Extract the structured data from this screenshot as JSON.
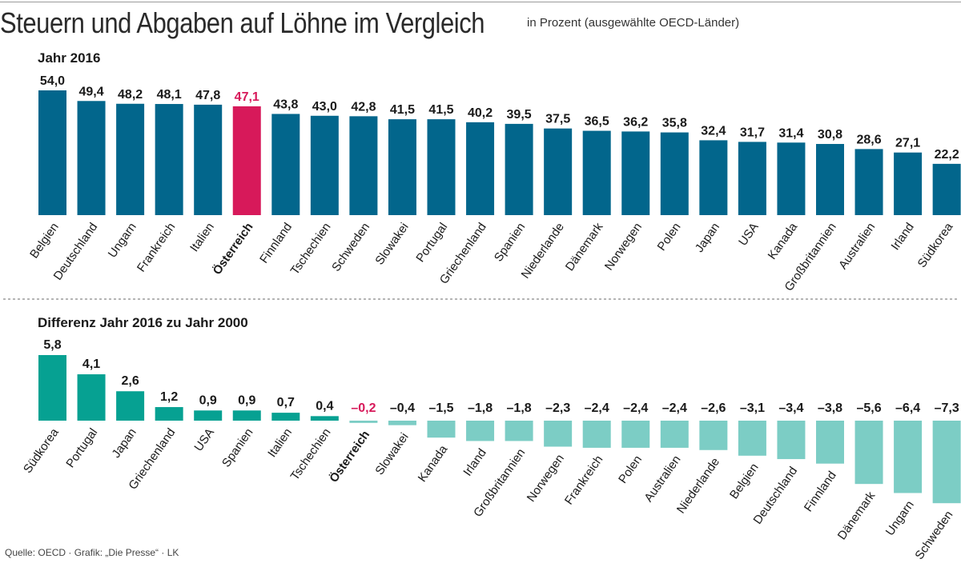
{
  "header": {
    "title": "Steuern und Abgaben auf Löhne im Vergleich",
    "subtitle": "in Prozent (ausgewählte OECD-Länder)"
  },
  "colors": {
    "panel1_bar": "#02668c",
    "panel2_bar_pos": "#06a192",
    "panel2_bar_neg": "#7ccdc5",
    "highlight": "#d7195a"
  },
  "chart_data": [
    {
      "type": "bar",
      "title": "Jahr 2016",
      "highlight": "Österreich",
      "categories": [
        "Belgien",
        "Deutschland",
        "Ungarn",
        "Frankreich",
        "Italien",
        "Österreich",
        "Finnland",
        "Tschechien",
        "Schweden",
        "Slowakei",
        "Portugal",
        "Griechenland",
        "Spanien",
        "Niederlande",
        "Dänemark",
        "Norwegen",
        "Polen",
        "Japan",
        "USA",
        "Kanada",
        "Großbritannien",
        "Australien",
        "Irland",
        "Südkorea"
      ],
      "values": [
        54.0,
        49.4,
        48.2,
        48.1,
        47.8,
        47.1,
        43.8,
        43.0,
        42.8,
        41.5,
        41.5,
        40.2,
        39.5,
        37.5,
        36.5,
        36.2,
        35.8,
        32.4,
        31.7,
        31.4,
        30.8,
        28.6,
        27.1,
        22.2
      ],
      "labels": [
        "54,0",
        "49,4",
        "48,2",
        "48,1",
        "47,8",
        "47,1",
        "43,8",
        "43,0",
        "42,8",
        "41,5",
        "41,5",
        "40,2",
        "39,5",
        "37,5",
        "36,5",
        "36,2",
        "35,8",
        "32,4",
        "31,7",
        "31,4",
        "30,8",
        "28,6",
        "27,1",
        "22,2"
      ]
    },
    {
      "type": "bar",
      "title": "Differenz Jahr 2016 zu Jahr 2000",
      "highlight": "Österreich",
      "categories": [
        "Südkorea",
        "Portugal",
        "Japan",
        "Griechenland",
        "USA",
        "Spanien",
        "Italien",
        "Tschechien",
        "Österreich",
        "Slowakei",
        "Kanada",
        "Irland",
        "Großbritannien",
        "Norwegen",
        "Frankreich",
        "Polen",
        "Australien",
        "Niederlande",
        "Belgien",
        "Deutschland",
        "Finnland",
        "Dänemark",
        "Ungarn",
        "Schweden"
      ],
      "values": [
        5.8,
        4.1,
        2.6,
        1.2,
        0.9,
        0.9,
        0.7,
        0.4,
        -0.2,
        -0.4,
        -1.5,
        -1.8,
        -1.8,
        -2.3,
        -2.4,
        -2.4,
        -2.4,
        -2.6,
        -3.1,
        -3.4,
        -3.8,
        -5.6,
        -6.4,
        -7.3
      ],
      "labels": [
        "5,8",
        "4,1",
        "2,6",
        "1,2",
        "0,9",
        "0,9",
        "0,7",
        "0,4",
        "–0,2",
        "–0,4",
        "–1,5",
        "–1,8",
        "–1,8",
        "–2,3",
        "–2,4",
        "–2,4",
        "–2,4",
        "–2,6",
        "–3,1",
        "–3,4",
        "–3,8",
        "–5,6",
        "–6,4",
        "–7,3"
      ]
    }
  ],
  "footer": {
    "source": "Quelle: OECD · Grafik: „Die Presse“ · LK"
  }
}
